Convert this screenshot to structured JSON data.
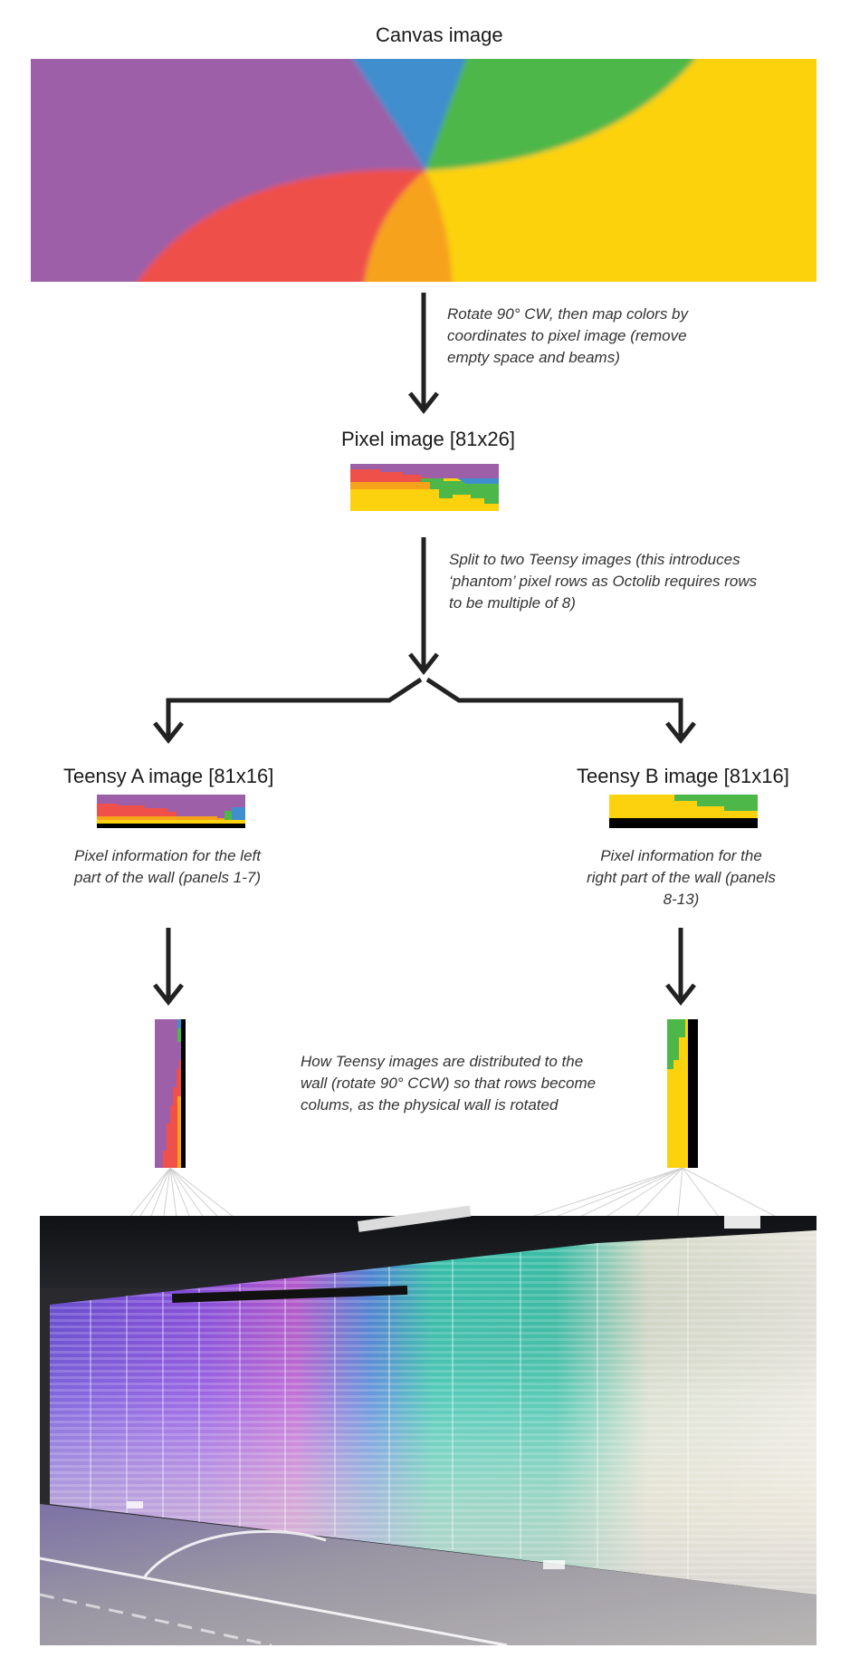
{
  "canvas": {
    "title": "Canvas image"
  },
  "steps": {
    "rotate_note": "Rotate 90° CW, then map colors by coordinates to pixel image (remove empty space and beams)",
    "split_note": "Split to two Teensy images (this introduces ‘phantom’ pixel rows as Octolib requires rows to be multiple of  8)",
    "distribute_note": "How Teensy images are distributed to the wall (rotate 90° CCW) so that rows become colums, as the physical wall is rotated"
  },
  "pixel_image": {
    "title": "Pixel image [81x26]"
  },
  "teensy_a": {
    "title": "Teensy A image [81x16]",
    "caption": "Pixel information for the left part of the wall (panels 1-7)"
  },
  "teensy_b": {
    "title": "Teensy B image  [81x16]",
    "caption": "Pixel information for the right part of the wall (panels 8-13)"
  },
  "colors": {
    "purple": "#9c5fa8",
    "blue": "#3f8ecd",
    "green": "#4db74a",
    "yellow": "#fcd20e",
    "red": "#ef5049",
    "orange": "#f7a21b",
    "arrow": "#222222",
    "black": "#000000"
  }
}
